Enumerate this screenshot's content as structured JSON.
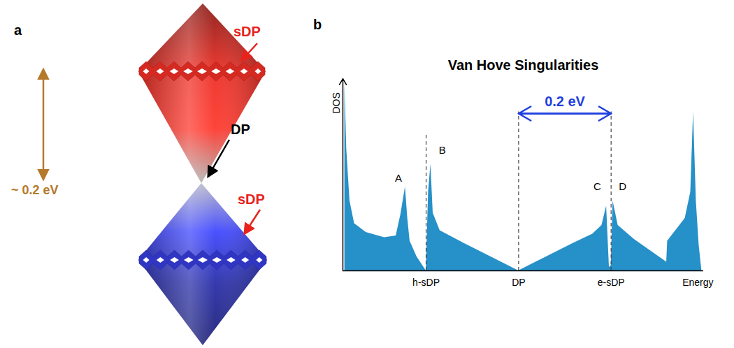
{
  "panel_a": {
    "panel_label": "a",
    "upper_label": {
      "text": "sDP",
      "color": "#e8231c"
    },
    "lower_label": {
      "text": "sDP",
      "color": "#e8231c"
    },
    "apex_label": {
      "text": "DP",
      "color": "#000000"
    },
    "gap_label": {
      "text": "~ 0.2 eV",
      "color": "#b5792b"
    },
    "upper_color": "#d42a22",
    "lower_color": "#2a2fa8"
  },
  "chart_data": {
    "type": "area",
    "panel_label": "b",
    "title": "Van Hove Singularities",
    "y_label": "DOS",
    "x_label": "Energy",
    "x": [
      -0.376,
      -0.372,
      -0.365,
      -0.355,
      -0.33,
      -0.29,
      -0.265,
      -0.255,
      -0.245,
      -0.24,
      -0.235,
      -0.22,
      -0.2,
      -0.195,
      -0.19,
      -0.185,
      -0.17,
      -0.12,
      -0.06,
      0,
      0.06,
      0.12,
      0.16,
      0.18,
      0.19,
      0.196,
      0.2,
      0.204,
      0.215,
      0.25,
      0.32,
      0.322,
      0.36,
      0.372,
      0.378,
      0.384,
      0.39,
      0.396
    ],
    "values": [
      1.08,
      0.7,
      0.4,
      0.27,
      0.22,
      0.19,
      0.2,
      0.32,
      0.48,
      0.3,
      0.17,
      0.08,
      0,
      0.45,
      0.61,
      0.33,
      0.23,
      0.16,
      0.08,
      0,
      0.08,
      0.16,
      0.21,
      0.26,
      0.37,
      0.02,
      0.03,
      0.4,
      0.26,
      0.18,
      0.05,
      0.17,
      0.3,
      0.45,
      0.91,
      0.4,
      0.15,
      0
    ],
    "color": "#2690c8",
    "xlim": [
      -0.38,
      0.4
    ],
    "ylim": [
      0,
      1.1
    ],
    "xticks": [
      {
        "value": -0.2,
        "label": "h-sDP"
      },
      {
        "value": 0,
        "label": "DP"
      },
      {
        "value": 0.2,
        "label": "e-sDP"
      }
    ],
    "yticks": [],
    "tick_labels": "x",
    "annotations": [
      {
        "text": "A",
        "x": -0.26,
        "y": 0.53
      },
      {
        "text": "B",
        "x": -0.165,
        "y": 0.69
      },
      {
        "text": "C",
        "x": 0.17,
        "y": 0.48
      },
      {
        "text": "D",
        "x": 0.225,
        "y": 0.48
      }
    ],
    "reference_lines": [
      {
        "x": -0.2,
        "y_top": 0.79
      },
      {
        "x": 0,
        "y_top": 0.91
      },
      {
        "x": 0.2,
        "y_top": 0.91
      }
    ],
    "span": {
      "label": "0.2 eV",
      "x1": 0,
      "x2": 0.2,
      "y": 0.9,
      "color": "#1f3fe0"
    }
  }
}
